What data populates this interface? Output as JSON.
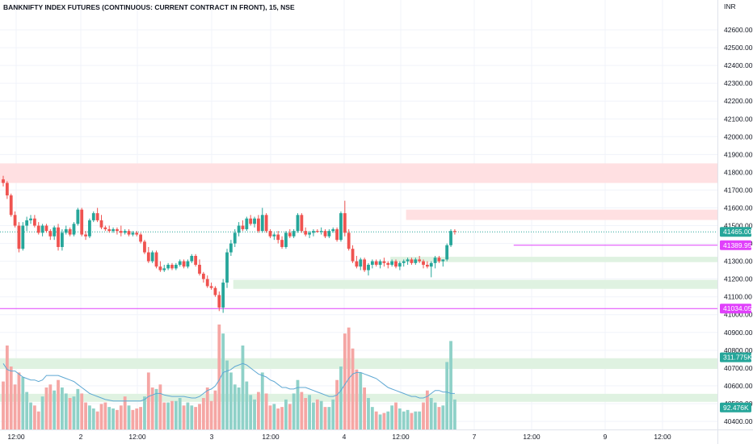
{
  "title": "BANKNIFTY INDEX FUTURES (CONTINUOUS: CURRENT CONTRACT IN FRONT), 15, NSE",
  "currency": "INR",
  "colors": {
    "up": "#26a69a",
    "down": "#ef5350",
    "vol_up": "#8fd1c8",
    "vol_down": "#f5a6a4",
    "zone_red": "#ffe0e2",
    "zone_green": "#dff2e1",
    "magenta_line": "#e040fb",
    "last_tag": "#26a69a",
    "vol_ma": "#5fa8d3",
    "grid": "#f0f3fa",
    "axis_border": "#e0e3eb"
  },
  "chart_data": {
    "type": "candlestick",
    "y_axis": {
      "min": 40400,
      "max": 42700,
      "ticks": [
        "42600.00",
        "42500.00",
        "42400.00",
        "42300.00",
        "42200.00",
        "42100.00",
        "42000.00",
        "41900.00",
        "41800.00",
        "41700.00",
        "41600.00",
        "41500.00",
        "41400.00",
        "41300.00",
        "41200.00",
        "41100.00",
        "41000.00",
        "40900.00",
        "40800.00",
        "40700.00",
        "40600.00",
        "40500.00",
        "40400.00"
      ]
    },
    "x_axis": {
      "ticks": [
        "12:00",
        "2",
        "12:00",
        "3",
        "12:00",
        "4",
        "12:00",
        "7",
        "12:00",
        "9",
        "12:00"
      ]
    },
    "zones": [
      {
        "kind": "supply",
        "from": 41740,
        "to": 41850,
        "start": 0
      },
      {
        "kind": "supply",
        "from": 41532,
        "to": 41590,
        "start": 103
      },
      {
        "kind": "demand",
        "from": 41295,
        "to": 41325,
        "start": 99
      },
      {
        "kind": "demand",
        "from": 41145,
        "to": 41195,
        "start": 59
      },
      {
        "kind": "demand",
        "from": 40695,
        "to": 40755,
        "start": 0
      },
      {
        "kind": "demand",
        "from": 40510,
        "to": 40555,
        "start": 0
      }
    ],
    "level_lines": [
      {
        "value": 41389.95,
        "label": "41389.95",
        "start": 130
      },
      {
        "value": 41034.05,
        "label": "41034.05",
        "start": 0
      }
    ],
    "last_price": {
      "value": 41465.0,
      "label": "41465.00"
    },
    "volume_tags": [
      {
        "label": "311.775K",
        "price": 40760,
        "color": "#26a69a"
      },
      {
        "label": "92.476K",
        "price": 40478,
        "color": "#26a69a"
      }
    ],
    "candles": [
      [
        41760,
        41780,
        41720,
        41740
      ],
      [
        41740,
        41750,
        41650,
        41670
      ],
      [
        41670,
        41680,
        41550,
        41560
      ],
      [
        41560,
        41580,
        41490,
        41500
      ],
      [
        41500,
        41520,
        41350,
        41370
      ],
      [
        41370,
        41520,
        41360,
        41500
      ],
      [
        41500,
        41550,
        41470,
        41530
      ],
      [
        41530,
        41560,
        41510,
        41540
      ],
      [
        41540,
        41560,
        41490,
        41500
      ],
      [
        41500,
        41520,
        41450,
        41460
      ],
      [
        41460,
        41510,
        41440,
        41500
      ],
      [
        41500,
        41510,
        41460,
        41470
      ],
      [
        41470,
        41480,
        41420,
        41440
      ],
      [
        41440,
        41500,
        41420,
        41490
      ],
      [
        41490,
        41510,
        41360,
        41380
      ],
      [
        41380,
        41480,
        41360,
        41460
      ],
      [
        41460,
        41500,
        41450,
        41480
      ],
      [
        41480,
        41490,
        41440,
        41450
      ],
      [
        41450,
        41520,
        41440,
        41510
      ],
      [
        41510,
        41600,
        41500,
        41590
      ],
      [
        41590,
        41600,
        41440,
        41450
      ],
      [
        41450,
        41470,
        41420,
        41440
      ],
      [
        41440,
        41540,
        41430,
        41530
      ],
      [
        41530,
        41580,
        41520,
        41570
      ],
      [
        41570,
        41600,
        41520,
        41530
      ],
      [
        41530,
        41560,
        41480,
        41490
      ],
      [
        41490,
        41500,
        41470,
        41480
      ],
      [
        41480,
        41500,
        41460,
        41470
      ],
      [
        41470,
        41490,
        41460,
        41480
      ],
      [
        41480,
        41490,
        41450,
        41470
      ],
      [
        41470,
        41500,
        41440,
        41460
      ],
      [
        41460,
        41480,
        41450,
        41470
      ],
      [
        41470,
        41480,
        41440,
        41450
      ],
      [
        41450,
        41470,
        41440,
        41460
      ],
      [
        41460,
        41470,
        41440,
        41450
      ],
      [
        41450,
        41460,
        41400,
        41410
      ],
      [
        41410,
        41420,
        41340,
        41350
      ],
      [
        41350,
        41380,
        41290,
        41300
      ],
      [
        41300,
        41360,
        41290,
        41350
      ],
      [
        41350,
        41360,
        41260,
        41270
      ],
      [
        41270,
        41300,
        41240,
        41250
      ],
      [
        41250,
        41280,
        41240,
        41260
      ],
      [
        41260,
        41290,
        41250,
        41280
      ],
      [
        41280,
        41290,
        41250,
        41260
      ],
      [
        41260,
        41290,
        41250,
        41280
      ],
      [
        41280,
        41310,
        41270,
        41300
      ],
      [
        41300,
        41310,
        41260,
        41270
      ],
      [
        41270,
        41310,
        41260,
        41300
      ],
      [
        41300,
        41340,
        41290,
        41330
      ],
      [
        41330,
        41340,
        41270,
        41280
      ],
      [
        41280,
        41310,
        41220,
        41230
      ],
      [
        41230,
        41240,
        41180,
        41200
      ],
      [
        41200,
        41220,
        41150,
        41160
      ],
      [
        41160,
        41180,
        41140,
        41150
      ],
      [
        41150,
        41160,
        41100,
        41110
      ],
      [
        41110,
        41130,
        41020,
        41040
      ],
      [
        41040,
        41200,
        41010,
        41180
      ],
      [
        41180,
        41370,
        41150,
        41350
      ],
      [
        41350,
        41420,
        41330,
        41400
      ],
      [
        41400,
        41480,
        41380,
        41460
      ],
      [
        41460,
        41520,
        41440,
        41500
      ],
      [
        41500,
        41530,
        41470,
        41480
      ],
      [
        41480,
        41550,
        41470,
        41540
      ],
      [
        41540,
        41560,
        41500,
        41510
      ],
      [
        41510,
        41550,
        41490,
        41540
      ],
      [
        41540,
        41560,
        41460,
        41470
      ],
      [
        41470,
        41600,
        41460,
        41560
      ],
      [
        41560,
        41570,
        41460,
        41470
      ],
      [
        41470,
        41480,
        41430,
        41440
      ],
      [
        41440,
        41460,
        41420,
        41450
      ],
      [
        41450,
        41470,
        41400,
        41420
      ],
      [
        41420,
        41440,
        41370,
        41380
      ],
      [
        41380,
        41470,
        41370,
        41460
      ],
      [
        41460,
        41480,
        41430,
        41440
      ],
      [
        41440,
        41480,
        41430,
        41470
      ],
      [
        41470,
        41570,
        41460,
        41560
      ],
      [
        41560,
        41570,
        41460,
        41470
      ],
      [
        41470,
        41490,
        41440,
        41450
      ],
      [
        41450,
        41470,
        41430,
        41460
      ],
      [
        41460,
        41480,
        41440,
        41470
      ],
      [
        41470,
        41480,
        41460,
        41465
      ],
      [
        41465,
        41490,
        41450,
        41470
      ],
      [
        41470,
        41480,
        41430,
        41440
      ],
      [
        41440,
        41480,
        41430,
        41470
      ],
      [
        41470,
        41490,
        41460,
        41480
      ],
      [
        41480,
        41490,
        41410,
        41420
      ],
      [
        41420,
        41580,
        41410,
        41570
      ],
      [
        41570,
        41640,
        41440,
        41460
      ],
      [
        41460,
        41480,
        41360,
        41370
      ],
      [
        41370,
        41390,
        41290,
        41300
      ],
      [
        41300,
        41330,
        41260,
        41270
      ],
      [
        41270,
        41320,
        41250,
        41310
      ],
      [
        41310,
        41320,
        41240,
        41250
      ],
      [
        41250,
        41290,
        41220,
        41280
      ],
      [
        41280,
        41310,
        41260,
        41300
      ],
      [
        41300,
        41310,
        41270,
        41280
      ],
      [
        41280,
        41310,
        41260,
        41300
      ],
      [
        41300,
        41320,
        41270,
        41290
      ],
      [
        41290,
        41300,
        41260,
        41280
      ],
      [
        41280,
        41310,
        41270,
        41300
      ],
      [
        41300,
        41310,
        41260,
        41270
      ],
      [
        41270,
        41300,
        41250,
        41290
      ],
      [
        41290,
        41310,
        41270,
        41300
      ],
      [
        41300,
        41320,
        41280,
        41310
      ],
      [
        41310,
        41320,
        41280,
        41290
      ],
      [
        41290,
        41320,
        41280,
        41310
      ],
      [
        41310,
        41330,
        41290,
        41300
      ],
      [
        41300,
        41310,
        41260,
        41280
      ],
      [
        41280,
        41300,
        41260,
        41270
      ],
      [
        41270,
        41300,
        41210,
        41290
      ],
      [
        41290,
        41330,
        41260,
        41320
      ],
      [
        41320,
        41330,
        41290,
        41300
      ],
      [
        41300,
        41310,
        41270,
        41310
      ],
      [
        41310,
        41400,
        41300,
        41390
      ],
      [
        41390,
        41480,
        41380,
        41470
      ],
      [
        41470,
        41480,
        41450,
        41465
      ]
    ],
    "volumes": [
      [
        320,
        "d"
      ],
      [
        560,
        "d"
      ],
      [
        420,
        "d"
      ],
      [
        300,
        "d"
      ],
      [
        380,
        "d"
      ],
      [
        350,
        "u"
      ],
      [
        250,
        "u"
      ],
      [
        180,
        "u"
      ],
      [
        160,
        "d"
      ],
      [
        120,
        "d"
      ],
      [
        220,
        "u"
      ],
      [
        280,
        "d"
      ],
      [
        300,
        "d"
      ],
      [
        260,
        "u"
      ],
      [
        330,
        "d"
      ],
      [
        280,
        "u"
      ],
      [
        240,
        "u"
      ],
      [
        210,
        "d"
      ],
      [
        220,
        "u"
      ],
      [
        270,
        "u"
      ],
      [
        240,
        "d"
      ],
      [
        180,
        "d"
      ],
      [
        160,
        "u"
      ],
      [
        140,
        "u"
      ],
      [
        120,
        "d"
      ],
      [
        170,
        "d"
      ],
      [
        180,
        "d"
      ],
      [
        150,
        "u"
      ],
      [
        140,
        "u"
      ],
      [
        130,
        "d"
      ],
      [
        160,
        "d"
      ],
      [
        220,
        "d"
      ],
      [
        160,
        "u"
      ],
      [
        130,
        "d"
      ],
      [
        140,
        "d"
      ],
      [
        150,
        "d"
      ],
      [
        220,
        "u"
      ],
      [
        380,
        "d"
      ],
      [
        280,
        "d"
      ],
      [
        270,
        "u"
      ],
      [
        300,
        "d"
      ],
      [
        180,
        "d"
      ],
      [
        180,
        "u"
      ],
      [
        190,
        "d"
      ],
      [
        190,
        "u"
      ],
      [
        210,
        "u"
      ],
      [
        160,
        "d"
      ],
      [
        180,
        "u"
      ],
      [
        160,
        "u"
      ],
      [
        150,
        "d"
      ],
      [
        170,
        "d"
      ],
      [
        210,
        "d"
      ],
      [
        280,
        "d"
      ],
      [
        190,
        "d"
      ],
      [
        260,
        "d"
      ],
      [
        700,
        "d"
      ],
      [
        640,
        "u"
      ],
      [
        460,
        "u"
      ],
      [
        380,
        "u"
      ],
      [
        300,
        "u"
      ],
      [
        280,
        "u"
      ],
      [
        560,
        "u"
      ],
      [
        320,
        "u"
      ],
      [
        230,
        "u"
      ],
      [
        200,
        "u"
      ],
      [
        250,
        "d"
      ],
      [
        380,
        "u"
      ],
      [
        240,
        "d"
      ],
      [
        160,
        "d"
      ],
      [
        170,
        "u"
      ],
      [
        140,
        "d"
      ],
      [
        150,
        "d"
      ],
      [
        200,
        "u"
      ],
      [
        170,
        "d"
      ],
      [
        240,
        "u"
      ],
      [
        330,
        "u"
      ],
      [
        250,
        "d"
      ],
      [
        210,
        "d"
      ],
      [
        230,
        "u"
      ],
      [
        180,
        "u"
      ],
      [
        200,
        "d"
      ],
      [
        190,
        "u"
      ],
      [
        150,
        "d"
      ],
      [
        150,
        "u"
      ],
      [
        200,
        "u"
      ],
      [
        330,
        "d"
      ],
      [
        420,
        "u"
      ],
      [
        640,
        "d"
      ],
      [
        680,
        "d"
      ],
      [
        540,
        "d"
      ],
      [
        400,
        "d"
      ],
      [
        380,
        "u"
      ],
      [
        280,
        "d"
      ],
      [
        210,
        "u"
      ],
      [
        150,
        "u"
      ],
      [
        120,
        "d"
      ],
      [
        100,
        "u"
      ],
      [
        110,
        "d"
      ],
      [
        120,
        "u"
      ],
      [
        160,
        "u"
      ],
      [
        180,
        "d"
      ],
      [
        140,
        "u"
      ],
      [
        120,
        "u"
      ],
      [
        130,
        "u"
      ],
      [
        110,
        "d"
      ],
      [
        120,
        "u"
      ],
      [
        120,
        "u"
      ],
      [
        180,
        "d"
      ],
      [
        260,
        "d"
      ],
      [
        210,
        "u"
      ],
      [
        180,
        "u"
      ],
      [
        150,
        "d"
      ],
      [
        160,
        "u"
      ],
      [
        450,
        "u"
      ],
      [
        590,
        "u"
      ],
      [
        200,
        "u"
      ]
    ],
    "volume_ma_levels": [
      440,
      400,
      390,
      390,
      370,
      350,
      340,
      330,
      330,
      320,
      330,
      360,
      360,
      360,
      360,
      350,
      340,
      330,
      320,
      300,
      280,
      260,
      240,
      230,
      220,
      210,
      200,
      195,
      190,
      190,
      190,
      190,
      190,
      190,
      190,
      190,
      200,
      220,
      230,
      240,
      240,
      230,
      225,
      220,
      220,
      220,
      220,
      215,
      210,
      210,
      220,
      240,
      260,
      270,
      290,
      330,
      380,
      390,
      400,
      420,
      430,
      440,
      430,
      410,
      390,
      370,
      360,
      350,
      330,
      320,
      300,
      280,
      280,
      270,
      270,
      280,
      280,
      280,
      270,
      260,
      250,
      240,
      230,
      220,
      220,
      230,
      260,
      300,
      340,
      370,
      380,
      380,
      370,
      360,
      350,
      340,
      320,
      300,
      280,
      270,
      260,
      250,
      240,
      230,
      220,
      220,
      210,
      210,
      220,
      240,
      260,
      260,
      250,
      250,
      240,
      240
    ]
  }
}
